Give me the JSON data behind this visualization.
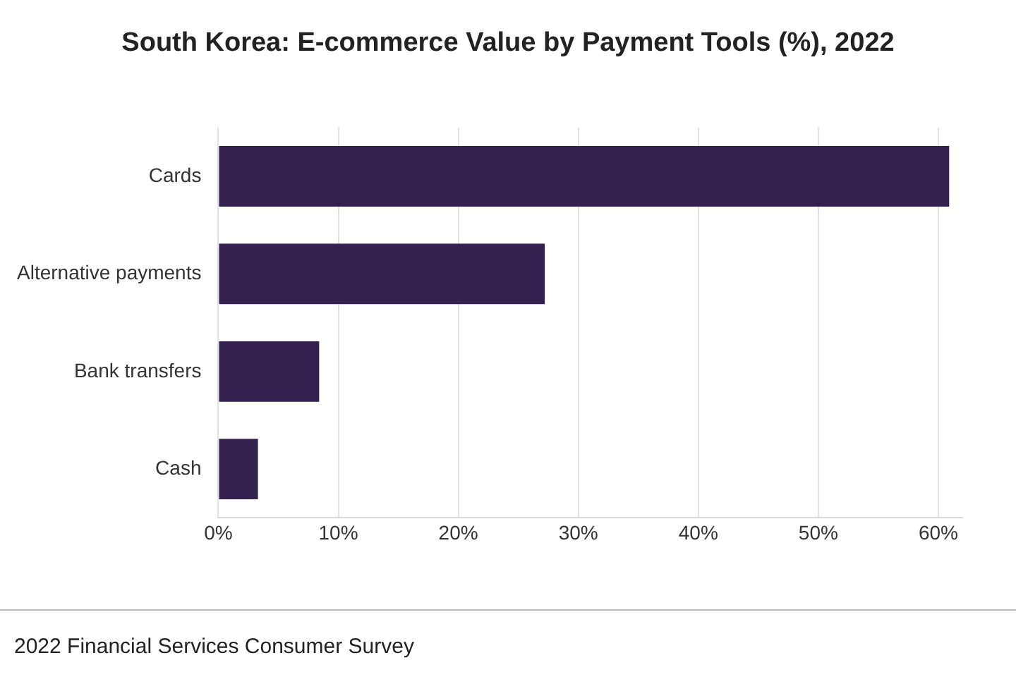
{
  "chart_data": {
    "type": "bar",
    "orientation": "horizontal",
    "title": "South Korea: E-commerce Value by Payment Tools (%), 2022",
    "categories": [
      "Cards",
      "Alternative payments",
      "Bank transfers",
      "Cash"
    ],
    "values": [
      60.9,
      27.2,
      8.4,
      3.3
    ],
    "color": "#35214f",
    "xlim": [
      0,
      62
    ],
    "xticks": [
      {
        "value": 0,
        "label": "0%"
      },
      {
        "value": 10,
        "label": "10%"
      },
      {
        "value": 20,
        "label": "20%"
      },
      {
        "value": 30,
        "label": "30%"
      },
      {
        "value": 40,
        "label": "40%"
      },
      {
        "value": 50,
        "label": "50%"
      },
      {
        "value": 60,
        "label": "60%"
      }
    ],
    "grid": "x",
    "legend": false,
    "annotations": [
      "2022 Financial Services Consumer Survey"
    ]
  }
}
